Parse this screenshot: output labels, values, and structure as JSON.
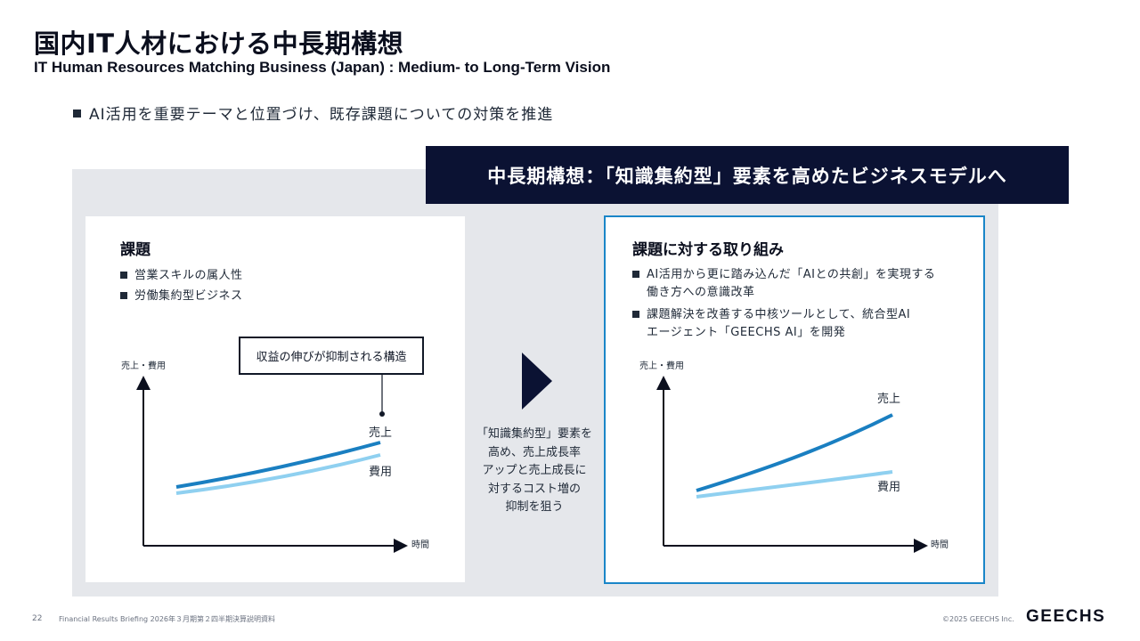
{
  "header": {
    "title": "国内IT人材における中長期構想",
    "subtitle": "IT Human Resources Matching Business (Japan) : Medium- to Long-Term Vision"
  },
  "lead_bullet": "AI活用を重要テーマと位置づけ、既存課題についての対策を推進",
  "banner": "中長期構想：「知識集約型」要素を高めたビジネスモデルへ",
  "left_card": {
    "heading": "課題",
    "bullets": [
      "営業スキルの属人性",
      "労働集約型ビジネス"
    ],
    "callout": "収益の伸びが抑制される構造"
  },
  "middle": {
    "lines": [
      "「知識集約型」要素を",
      "高め、売上成長率",
      "アップと売上成長に",
      "対するコスト増の",
      "抑制を狙う"
    ]
  },
  "right_card": {
    "heading": "課題に対する取り組み",
    "bullets": [
      {
        "line1": "AI活用から更に踏み込んだ「AIとの共創」を実現する",
        "line2": "働き方への意識改革"
      },
      {
        "line1": "課題解決を改善する中核ツールとして、統合型AI",
        "line2": "エージェント「GEECHS AI」を開発"
      }
    ]
  },
  "chart_data": [
    {
      "type": "line",
      "ylabel": "売上・費用",
      "xlabel": "時間",
      "series": [
        {
          "name": "売上",
          "color": "#1a7fc1",
          "trend": "gently rising"
        },
        {
          "name": "費用",
          "color": "#8fd0f0",
          "trend": "gently rising, close to 売上"
        }
      ]
    },
    {
      "type": "line",
      "ylabel": "売上・費用",
      "xlabel": "時間",
      "series": [
        {
          "name": "売上",
          "color": "#1a7fc1",
          "trend": "accelerating upward"
        },
        {
          "name": "費用",
          "color": "#8fd0f0",
          "trend": "slowly rising"
        }
      ]
    }
  ],
  "footer": {
    "page": "22",
    "doc": "Financial Results Briefing 2026年３月期第２四半期決算説明資料",
    "copyright": "©2025 GEECHS Inc.",
    "logo": "GEECHS"
  }
}
